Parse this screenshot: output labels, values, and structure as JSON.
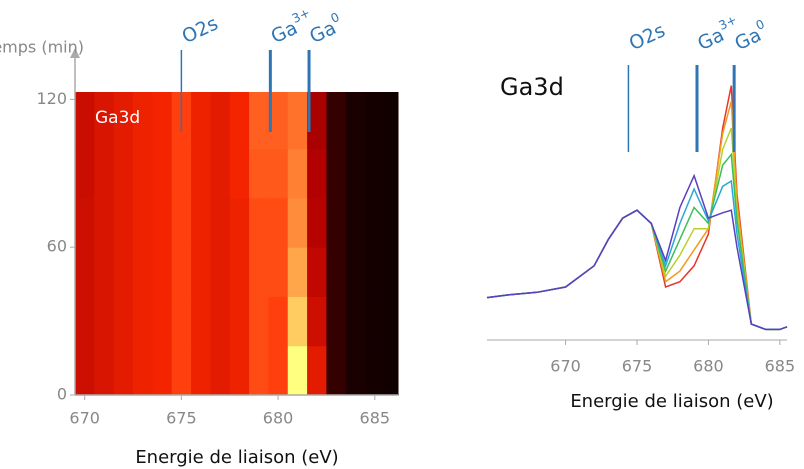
{
  "chart_data": [
    {
      "type": "heatmap",
      "label": "Ga3d",
      "y_label": "Temps (min)",
      "x_label": "Energie de liaison (eV)",
      "x": [
        669.5,
        670.5,
        671.5,
        672.5,
        673.5,
        674.5,
        675.5,
        676.5,
        677.5,
        678.5,
        679.5,
        680.5,
        681.5,
        682.5,
        683.5,
        684.5,
        685.5,
        686.2
      ],
      "y": [
        0,
        20,
        40,
        60,
        80,
        100,
        123
      ],
      "z": [
        [
          0.45,
          0.5,
          0.55,
          0.6,
          0.62,
          0.7,
          0.6,
          0.55,
          0.6,
          0.72,
          0.7,
          1.0,
          0.55,
          0.1,
          0.05,
          0.04,
          0.03
        ],
        [
          0.45,
          0.5,
          0.55,
          0.6,
          0.62,
          0.7,
          0.6,
          0.55,
          0.6,
          0.72,
          0.7,
          0.92,
          0.45,
          0.1,
          0.05,
          0.04,
          0.03
        ],
        [
          0.45,
          0.5,
          0.55,
          0.6,
          0.62,
          0.7,
          0.6,
          0.55,
          0.6,
          0.72,
          0.72,
          0.86,
          0.4,
          0.1,
          0.05,
          0.04,
          0.03
        ],
        [
          0.45,
          0.5,
          0.55,
          0.6,
          0.62,
          0.7,
          0.6,
          0.55,
          0.6,
          0.72,
          0.72,
          0.82,
          0.36,
          0.1,
          0.05,
          0.04,
          0.03
        ],
        [
          0.44,
          0.5,
          0.55,
          0.6,
          0.62,
          0.7,
          0.6,
          0.55,
          0.62,
          0.74,
          0.74,
          0.8,
          0.34,
          0.1,
          0.05,
          0.04,
          0.03
        ],
        [
          0.44,
          0.5,
          0.55,
          0.6,
          0.62,
          0.7,
          0.6,
          0.55,
          0.62,
          0.75,
          0.75,
          0.78,
          0.32,
          0.1,
          0.05,
          0.04,
          0.03
        ]
      ],
      "colorscale": [
        "#000000",
        "#b00000",
        "#ff2a00",
        "#ffff80"
      ],
      "xlim": [
        669.5,
        686.2
      ],
      "xticks": [
        670,
        675,
        680,
        685
      ],
      "ylim": [
        0,
        123
      ],
      "yticks": [
        0,
        60,
        120
      ],
      "annotations": [
        {
          "text": "O2s",
          "x": 675
        },
        {
          "text": "Ga",
          "sup": "3+",
          "x": 679.6
        },
        {
          "text": "Ga",
          "sup": "0",
          "x": 681.6
        }
      ],
      "annotation_color": "#2e75b6"
    },
    {
      "type": "line",
      "label": "Ga3d",
      "x_label": "Energie de liaison (eV)",
      "x": [
        664.5,
        666,
        668,
        670,
        672,
        673,
        674,
        675,
        676,
        677,
        678,
        679,
        680,
        681,
        681.6,
        682,
        683,
        684,
        685,
        685.5
      ],
      "series": [
        {
          "color": "#e8342a",
          "values": [
            0.16,
            0.17,
            0.18,
            0.2,
            0.28,
            0.38,
            0.46,
            0.49,
            0.44,
            0.2,
            0.22,
            0.28,
            0.4,
            0.8,
            0.96,
            0.55,
            0.06,
            0.04,
            0.04,
            0.05
          ]
        },
        {
          "color": "#f39a1c",
          "values": [
            0.16,
            0.17,
            0.18,
            0.2,
            0.28,
            0.38,
            0.46,
            0.49,
            0.44,
            0.22,
            0.26,
            0.34,
            0.42,
            0.78,
            0.9,
            0.52,
            0.06,
            0.04,
            0.04,
            0.05
          ]
        },
        {
          "color": "#b8d12a",
          "values": [
            0.16,
            0.17,
            0.18,
            0.2,
            0.28,
            0.38,
            0.46,
            0.49,
            0.44,
            0.24,
            0.32,
            0.42,
            0.42,
            0.72,
            0.8,
            0.48,
            0.06,
            0.04,
            0.04,
            0.05
          ]
        },
        {
          "color": "#3cbf5a",
          "values": [
            0.16,
            0.17,
            0.18,
            0.2,
            0.28,
            0.38,
            0.46,
            0.49,
            0.44,
            0.26,
            0.38,
            0.5,
            0.44,
            0.66,
            0.7,
            0.45,
            0.06,
            0.04,
            0.04,
            0.05
          ]
        },
        {
          "color": "#2aa7d8",
          "values": [
            0.16,
            0.17,
            0.18,
            0.2,
            0.28,
            0.38,
            0.46,
            0.49,
            0.44,
            0.28,
            0.44,
            0.57,
            0.45,
            0.58,
            0.6,
            0.4,
            0.06,
            0.04,
            0.04,
            0.05
          ]
        },
        {
          "color": "#5a3fc0",
          "values": [
            0.16,
            0.17,
            0.18,
            0.2,
            0.28,
            0.38,
            0.46,
            0.49,
            0.44,
            0.3,
            0.5,
            0.62,
            0.46,
            0.48,
            0.49,
            0.35,
            0.06,
            0.04,
            0.04,
            0.05
          ]
        }
      ],
      "xlim": [
        664.5,
        685.5
      ],
      "xticks": [
        670,
        675,
        680,
        685
      ],
      "ylim": [
        0,
        1
      ],
      "annotations": [
        {
          "text": "O2s",
          "x": 674.4
        },
        {
          "text": "Ga",
          "sup": "3+",
          "x": 679.2
        },
        {
          "text": "Ga",
          "sup": "0",
          "x": 681.8
        }
      ],
      "annotation_color": "#2e75b6"
    }
  ]
}
